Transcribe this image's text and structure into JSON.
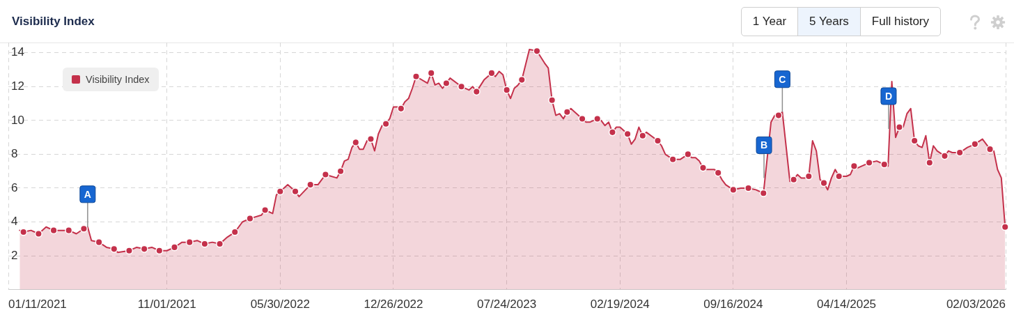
{
  "chart_data": {
    "type": "area",
    "title": "Visibility Index",
    "legend": "top left",
    "grid": true,
    "xlim": [
      "2021-01-11",
      "2026-02-03"
    ],
    "xticks": [
      {
        "value": "2021-01-11",
        "label": "01/11/2021"
      },
      {
        "value": "2021-11-01",
        "label": "11/01/2021"
      },
      {
        "value": "2022-05-30",
        "label": "05/30/2022"
      },
      {
        "value": "2022-12-26",
        "label": "12/26/2022"
      },
      {
        "value": "2023-07-24",
        "label": "07/24/2023"
      },
      {
        "value": "2024-02-19",
        "label": "02/19/2024"
      },
      {
        "value": "2024-09-16",
        "label": "09/16/2024"
      },
      {
        "value": "2025-04-14",
        "label": "04/14/2025"
      },
      {
        "value": "2026-02-03",
        "label": "02/03/2026"
      }
    ],
    "ylim": [
      0,
      14.6
    ],
    "yticks": [
      2,
      4,
      6,
      8,
      10,
      12,
      14
    ],
    "annotations": [
      {
        "text": "A",
        "x": "2021-06-07",
        "y": 3.7
      },
      {
        "text": "B",
        "x": "2024-11-12",
        "y": 6.6
      },
      {
        "text": "C",
        "x": "2024-12-16",
        "y": 10.5
      },
      {
        "text": "D",
        "x": "2025-07-01",
        "y": 9.5
      },
      "1 Year",
      "5 Years",
      "Full history"
    ],
    "series": [
      {
        "name": "Visibility Index",
        "color": "#c4314b",
        "marker": "none",
        "x": [
          "2021-02-01",
          "2021-02-08",
          "2021-02-22",
          "2021-03-08",
          "2021-03-22",
          "2021-04-05",
          "2021-04-19",
          "2021-05-03",
          "2021-05-17",
          "2021-05-31",
          "2021-06-07",
          "2021-06-14",
          "2021-06-28",
          "2021-07-12",
          "2021-07-26",
          "2021-08-02",
          "2021-08-23",
          "2021-09-06",
          "2021-09-20",
          "2021-10-04",
          "2021-10-18",
          "2021-11-01",
          "2021-11-15",
          "2021-11-29",
          "2021-12-13",
          "2021-12-27",
          "2022-01-10",
          "2022-01-24",
          "2022-02-07",
          "2022-02-21",
          "2022-03-07",
          "2022-03-21",
          "2022-04-04",
          "2022-04-25",
          "2022-05-02",
          "2022-05-16",
          "2022-05-23",
          "2022-05-30",
          "2022-06-13",
          "2022-06-27",
          "2022-07-04",
          "2022-07-25",
          "2022-08-08",
          "2022-08-22",
          "2022-09-12",
          "2022-09-19",
          "2022-09-26",
          "2022-10-03",
          "2022-10-10",
          "2022-10-17",
          "2022-10-24",
          "2022-10-31",
          "2022-11-07",
          "2022-11-14",
          "2022-11-21",
          "2022-11-28",
          "2022-12-05",
          "2022-12-12",
          "2022-12-19",
          "2022-12-26",
          "2023-01-02",
          "2023-01-09",
          "2023-01-16",
          "2023-01-23",
          "2023-01-30",
          "2023-02-06",
          "2023-02-27",
          "2023-03-06",
          "2023-03-13",
          "2023-03-20",
          "2023-03-27",
          "2023-04-03",
          "2023-04-10",
          "2023-05-01",
          "2023-05-15",
          "2023-05-22",
          "2023-05-29",
          "2023-06-12",
          "2023-06-26",
          "2023-07-03",
          "2023-07-10",
          "2023-07-17",
          "2023-07-24",
          "2023-07-31",
          "2023-08-07",
          "2023-08-14",
          "2023-08-21",
          "2023-09-04",
          "2023-09-18",
          "2023-10-02",
          "2023-10-09",
          "2023-10-16",
          "2023-10-23",
          "2023-10-30",
          "2023-11-06",
          "2023-11-13",
          "2023-11-20",
          "2023-11-27",
          "2023-12-11",
          "2023-12-18",
          "2023-12-25",
          "2024-01-08",
          "2024-01-15",
          "2024-01-22",
          "2024-01-29",
          "2024-02-05",
          "2024-02-12",
          "2024-02-19",
          "2024-03-04",
          "2024-03-11",
          "2024-03-18",
          "2024-03-25",
          "2024-04-01",
          "2024-04-08",
          "2024-04-29",
          "2024-05-06",
          "2024-05-13",
          "2024-05-27",
          "2024-06-10",
          "2024-06-24",
          "2024-07-01",
          "2024-07-08",
          "2024-07-15",
          "2024-07-22",
          "2024-07-29",
          "2024-08-12",
          "2024-08-19",
          "2024-08-26",
          "2024-09-02",
          "2024-09-16",
          "2024-09-30",
          "2024-10-14",
          "2024-10-28",
          "2024-11-11",
          "2024-11-25",
          "2024-12-02",
          "2024-12-09",
          "2024-12-16",
          "2024-12-30",
          "2025-01-06",
          "2025-01-13",
          "2025-01-20",
          "2025-01-27",
          "2025-02-03",
          "2025-02-10",
          "2025-02-17",
          "2025-02-24",
          "2025-03-03",
          "2025-03-10",
          "2025-03-17",
          "2025-03-24",
          "2025-03-31",
          "2025-04-14",
          "2025-04-21",
          "2025-04-28",
          "2025-05-05",
          "2025-05-26",
          "2025-06-09",
          "2025-06-23",
          "2025-06-30",
          "2025-07-07",
          "2025-07-14",
          "2025-07-21",
          "2025-07-28",
          "2025-08-04",
          "2025-08-11",
          "2025-08-18",
          "2025-08-25",
          "2025-09-01",
          "2025-09-08",
          "2025-09-15",
          "2025-09-22",
          "2025-09-29",
          "2025-10-13",
          "2025-10-20",
          "2025-10-27",
          "2025-11-10",
          "2025-11-24",
          "2025-12-08",
          "2025-12-22",
          "2026-01-05",
          "2026-01-12",
          "2026-01-19",
          "2026-01-26",
          "2026-02-02"
        ],
        "values": [
          3.5,
          3.4,
          3.5,
          3.3,
          3.7,
          3.5,
          3.5,
          3.5,
          3.3,
          3.6,
          3.7,
          2.9,
          2.8,
          2.5,
          2.4,
          2.2,
          2.3,
          2.5,
          2.4,
          2.5,
          2.3,
          2.3,
          2.5,
          2.8,
          2.8,
          2.9,
          2.7,
          2.8,
          2.7,
          3.1,
          3.4,
          4.0,
          4.2,
          4.4,
          4.7,
          4.5,
          5.6,
          5.8,
          6.2,
          5.8,
          5.5,
          6.2,
          6.2,
          6.8,
          6.6,
          7.0,
          7.6,
          7.7,
          8.4,
          8.7,
          8.3,
          8.3,
          8.8,
          8.9,
          8.2,
          9.2,
          9.7,
          9.8,
          10.1,
          10.8,
          10.8,
          10.7,
          11.1,
          11.3,
          11.9,
          12.6,
          12.2,
          12.8,
          12.1,
          12.2,
          11.9,
          12.2,
          12.5,
          12.0,
          11.8,
          12.0,
          11.7,
          12.4,
          12.8,
          12.6,
          12.9,
          12.7,
          11.8,
          11.3,
          11.9,
          12.1,
          12.4,
          14.2,
          14.1,
          13.4,
          13.1,
          11.2,
          10.3,
          10.4,
          10.1,
          10.5,
          10.7,
          10.5,
          10.1,
          9.9,
          9.9,
          10.1,
          10.0,
          9.7,
          9.9,
          9.3,
          9.6,
          9.6,
          9.2,
          8.6,
          8.9,
          9.6,
          9.1,
          9.3,
          8.8,
          8.5,
          8.0,
          7.7,
          7.7,
          8.0,
          7.8,
          7.8,
          7.6,
          7.2,
          7.1,
          7.1,
          6.9,
          6.5,
          6.2,
          5.9,
          6.0,
          6.0,
          5.9,
          5.7,
          9.9,
          10.3,
          10.3,
          10.5,
          6.4,
          6.5,
          6.8,
          6.6,
          6.6,
          6.7,
          8.8,
          8.2,
          6.5,
          6.3,
          5.9,
          6.6,
          7.1,
          6.7,
          6.7,
          6.8,
          7.3,
          7.2,
          7.5,
          7.6,
          7.4,
          7.3,
          12.3,
          9.0,
          9.6,
          9.6,
          10.4,
          10.7,
          8.8,
          8.5,
          8.4,
          9.1,
          7.5,
          8.5,
          8.2,
          7.9,
          8.2,
          8.1,
          8.1,
          8.4,
          8.6,
          8.9,
          8.3,
          8.2,
          7.1,
          6.6,
          3.7
        ]
      },
      {
        "type": "scatter",
        "color": "#c4314b",
        "marker": "circle",
        "x": [
          "2021-02-08",
          "2021-03-08",
          "2021-04-05",
          "2021-05-03",
          "2021-05-31",
          "2021-06-28",
          "2021-07-26",
          "2021-08-23",
          "2021-09-20",
          "2021-10-18",
          "2021-11-15",
          "2021-12-13",
          "2022-01-10",
          "2022-02-07",
          "2022-03-07",
          "2022-04-04",
          "2022-05-02",
          "2022-05-30",
          "2022-06-27",
          "2022-07-25",
          "2022-08-22",
          "2022-09-19",
          "2022-10-17",
          "2022-11-14",
          "2022-12-12",
          "2023-01-09",
          "2023-02-06",
          "2023-03-06",
          "2023-04-03",
          "2023-05-01",
          "2023-05-29",
          "2023-06-26",
          "2023-07-24",
          "2023-08-21",
          "2023-09-18",
          "2023-10-16",
          "2023-11-13",
          "2023-12-11",
          "2024-01-08",
          "2024-02-05",
          "2024-03-04",
          "2024-04-01",
          "2024-04-29",
          "2024-05-27",
          "2024-06-24",
          "2024-07-22",
          "2024-08-19",
          "2024-09-16",
          "2024-10-14",
          "2024-11-11",
          "2024-12-09",
          "2025-01-06",
          "2025-02-03",
          "2025-03-03",
          "2025-03-31",
          "2025-04-28",
          "2025-05-26",
          "2025-06-23",
          "2025-07-21",
          "2025-08-18",
          "2025-09-15",
          "2025-10-13",
          "2025-11-10",
          "2025-12-08",
          "2026-01-05",
          "2026-02-02"
        ],
        "values": [
          3.4,
          3.3,
          3.5,
          3.5,
          3.6,
          2.8,
          2.4,
          2.3,
          2.4,
          2.3,
          2.5,
          2.8,
          2.7,
          2.7,
          3.4,
          4.2,
          4.7,
          5.8,
          5.8,
          6.2,
          6.8,
          7.0,
          8.7,
          8.9,
          9.8,
          10.7,
          12.6,
          12.8,
          12.2,
          12.0,
          11.7,
          12.8,
          11.8,
          12.4,
          14.1,
          11.2,
          10.5,
          10.1,
          10.1,
          9.3,
          9.2,
          9.1,
          8.8,
          7.7,
          8.0,
          7.2,
          6.9,
          5.9,
          6.0,
          5.7,
          10.3,
          6.5,
          6.7,
          6.3,
          6.7,
          7.3,
          7.5,
          7.4,
          9.6,
          8.8,
          7.5,
          7.9,
          8.1,
          8.6,
          8.3,
          3.7
        ]
      }
    ]
  }
}
